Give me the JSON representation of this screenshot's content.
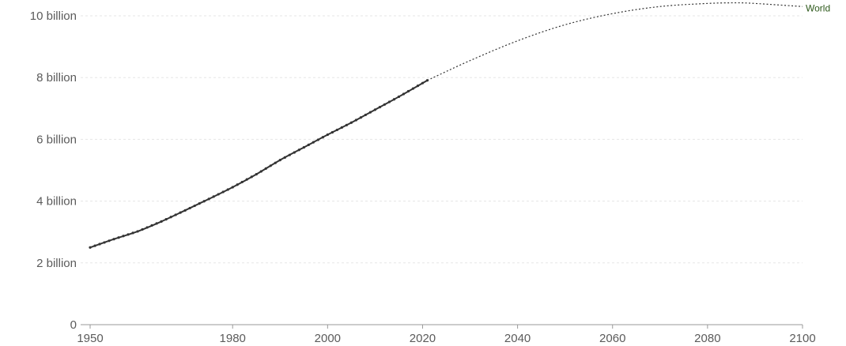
{
  "chart_data": {
    "type": "line",
    "title": "",
    "xlabel": "",
    "ylabel": "",
    "xlim": [
      1950,
      2100
    ],
    "ylim": [
      0,
      10000000000
    ],
    "grid": true,
    "y_ticks": [
      {
        "value": 0,
        "label": "0"
      },
      {
        "value": 2000000000,
        "label": "2 billion"
      },
      {
        "value": 4000000000,
        "label": "4 billion"
      },
      {
        "value": 6000000000,
        "label": "6 billion"
      },
      {
        "value": 8000000000,
        "label": "8 billion"
      },
      {
        "value": 10000000000,
        "label": "10 billion"
      }
    ],
    "x_ticks": [
      {
        "value": 1950,
        "label": "1950"
      },
      {
        "value": 1980,
        "label": "1980"
      },
      {
        "value": 2000,
        "label": "2000"
      },
      {
        "value": 2020,
        "label": "2020"
      },
      {
        "value": 2040,
        "label": "2040"
      },
      {
        "value": 2060,
        "label": "2060"
      },
      {
        "value": 2080,
        "label": "2080"
      },
      {
        "value": 2100,
        "label": "2100"
      }
    ],
    "series": [
      {
        "name": "World",
        "color": "#2e5a1c",
        "line_color": "#333333",
        "estimates": {
          "x": [
            1950,
            1955,
            1960,
            1965,
            1970,
            1975,
            1980,
            1985,
            1990,
            1995,
            2000,
            2005,
            2010,
            2015,
            2021
          ],
          "y": [
            2500000000,
            2770000000,
            3020000000,
            3340000000,
            3700000000,
            4070000000,
            4450000000,
            4870000000,
            5330000000,
            5740000000,
            6150000000,
            6540000000,
            6960000000,
            7380000000,
            7910000000
          ]
        },
        "projection": {
          "x": [
            2021,
            2030,
            2040,
            2050,
            2060,
            2070,
            2080,
            2086,
            2090,
            2100
          ],
          "y": [
            7910000000,
            8550000000,
            9190000000,
            9710000000,
            10070000000,
            10300000000,
            10400000000,
            10420000000,
            10400000000,
            10300000000
          ]
        }
      }
    ]
  }
}
